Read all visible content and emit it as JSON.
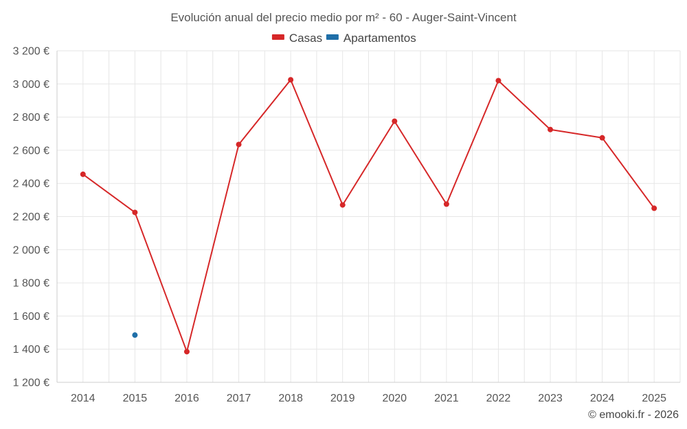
{
  "chart_data": {
    "type": "line",
    "title": "Evolución anual del precio medio por m² - 60 - Auger-Saint-Vincent",
    "xlabel": "",
    "ylabel": "",
    "categories": [
      "2014",
      "2015",
      "2016",
      "2017",
      "2018",
      "2019",
      "2020",
      "2021",
      "2022",
      "2023",
      "2024",
      "2025"
    ],
    "ylim": [
      1200,
      3200
    ],
    "yticks": [
      1200,
      1400,
      1600,
      1800,
      2000,
      2200,
      2400,
      2600,
      2800,
      3000,
      3200
    ],
    "ytick_labels": [
      "1 200 €",
      "1 400 €",
      "1 600 €",
      "1 800 €",
      "2 000 €",
      "2 200 €",
      "2 400 €",
      "2 600 €",
      "2 800 €",
      "3 000 €",
      "3 200 €"
    ],
    "grid": true,
    "legend_position": "top-center",
    "series": [
      {
        "name": "Casas",
        "color": "#d62728",
        "values": [
          2455,
          2225,
          1385,
          2635,
          3025,
          2270,
          2775,
          2275,
          3020,
          2725,
          2675,
          2250
        ]
      },
      {
        "name": "Apartamentos",
        "color": "#1f6fa8",
        "values": [
          null,
          1485,
          null,
          null,
          null,
          null,
          null,
          null,
          null,
          null,
          null,
          null
        ]
      }
    ],
    "credit": "© emooki.fr - 2026"
  }
}
